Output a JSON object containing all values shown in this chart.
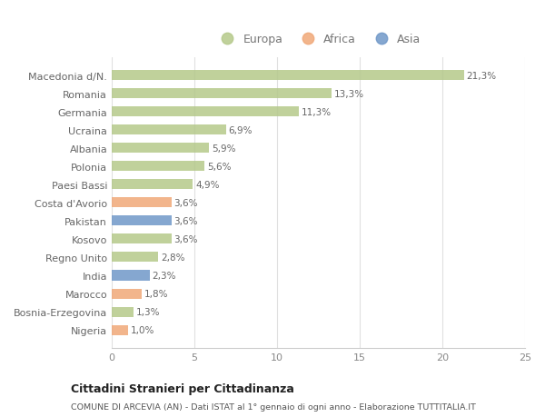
{
  "categories": [
    "Macedonia d/N.",
    "Romania",
    "Germania",
    "Ucraina",
    "Albania",
    "Polonia",
    "Paesi Bassi",
    "Costa d'Avorio",
    "Pakistan",
    "Kosovo",
    "Regno Unito",
    "India",
    "Marocco",
    "Bosnia-Erzegovina",
    "Nigeria"
  ],
  "values": [
    21.3,
    13.3,
    11.3,
    6.9,
    5.9,
    5.6,
    4.9,
    3.6,
    3.6,
    3.6,
    2.8,
    2.3,
    1.8,
    1.3,
    1.0
  ],
  "labels": [
    "21,3%",
    "13,3%",
    "11,3%",
    "6,9%",
    "5,9%",
    "5,6%",
    "4,9%",
    "3,6%",
    "3,6%",
    "3,6%",
    "2,8%",
    "2,3%",
    "1,8%",
    "1,3%",
    "1,0%"
  ],
  "colors": [
    "#b5c98a",
    "#b5c98a",
    "#b5c98a",
    "#b5c98a",
    "#b5c98a",
    "#b5c98a",
    "#b5c98a",
    "#f0a878",
    "#7098c8",
    "#b5c98a",
    "#b5c98a",
    "#7098c8",
    "#f0a878",
    "#b5c98a",
    "#f0a878"
  ],
  "europa_color": "#b5c98a",
  "africa_color": "#f0a878",
  "asia_color": "#7098c8",
  "title": "Cittadini Stranieri per Cittadinanza",
  "subtitle": "COMUNE DI ARCEVIA (AN) - Dati ISTAT al 1° gennaio di ogni anno - Elaborazione TUTTITALIA.IT",
  "xlim": [
    0,
    25
  ],
  "xticks": [
    0,
    5,
    10,
    15,
    20,
    25
  ],
  "background_color": "#ffffff",
  "grid_color": "#e0e0e0",
  "bar_height": 0.55,
  "legend_labels": [
    "Europa",
    "Africa",
    "Asia"
  ]
}
